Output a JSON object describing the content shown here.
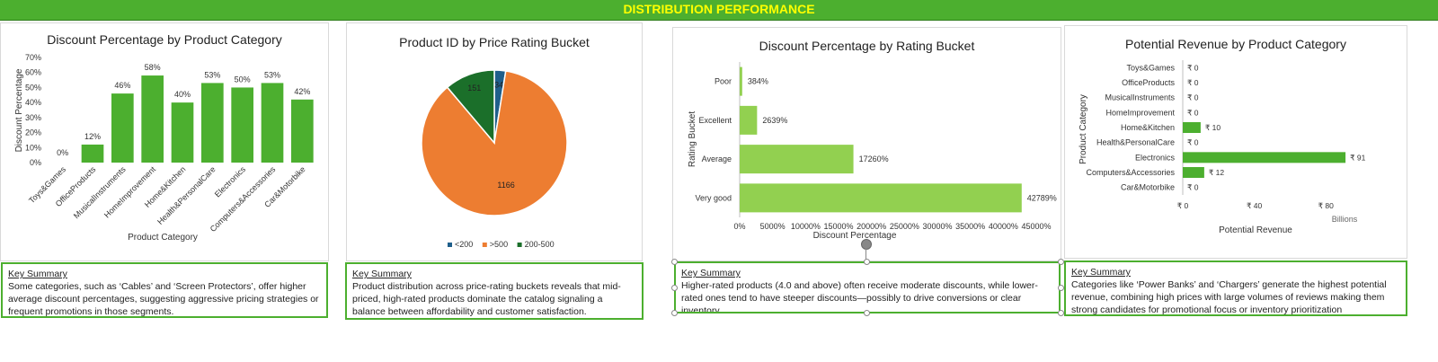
{
  "banner": {
    "title": "DISTRIBUTION PERFORMANCE"
  },
  "colors": {
    "green": "#4caf2f",
    "light_green": "#92d050",
    "orange": "#ed7d31",
    "dark_green": "#1b6f2a",
    "blue": "#1f5f8b",
    "banner_text": "#ffff00"
  },
  "summaries": [
    {
      "heading": "Key Summary",
      "text": "Some categories, such as ‘Cables’ and ‘Screen Protectors’, offer higher average discount percentages, suggesting aggressive pricing strategies or frequent promotions in those segments."
    },
    {
      "heading": "Key Summary",
      "text": "Product distribution across price-rating buckets reveals that mid-priced, high-rated products dominate the catalog signaling a balance between affordability and customer satisfaction."
    },
    {
      "heading": "Key Summary",
      "text": "Higher-rated products (4.0 and above) often receive moderate discounts, while lower-rated ones tend to have steeper discounts—possibly to drive conversions or clear inventory."
    },
    {
      "heading": "Key Summary",
      "text": "Categories like ‘Power Banks’ and ‘Chargers’ generate the highest potential revenue, combining high prices with large volumes of reviews making them strong candidates for promotional focus or inventory prioritization"
    }
  ],
  "chart_data": [
    {
      "type": "bar",
      "title": "Discount Percentage by Product Category",
      "xlabel": "Product Category",
      "ylabel": "Discount Percentage",
      "categories": [
        "Toys&Games",
        "OfficeProducts",
        "MusicalInstruments",
        "HomeImprovement",
        "Home&Kitchen",
        "Health&PersonalCare",
        "Electronics",
        "Computers&Accessories",
        "Car&Motorbike"
      ],
      "values": [
        0,
        12,
        46,
        58,
        40,
        53,
        50,
        53,
        42
      ],
      "data_labels": [
        "0%",
        "12%",
        "46%",
        "58%",
        "40%",
        "53%",
        "50%",
        "53%",
        "42%"
      ],
      "yticks": [
        "0%",
        "10%",
        "20%",
        "30%",
        "40%",
        "50%",
        "60%",
        "70%"
      ],
      "ylim": [
        0,
        70
      ],
      "grid": false
    },
    {
      "type": "pie",
      "title": "Product ID by Price Rating Bucket",
      "labels": [
        "<200",
        ">500",
        "200-500"
      ],
      "values": [
        34,
        1166,
        151
      ],
      "data_labels": [
        "34",
        "1166",
        "151"
      ],
      "legend": "bottom"
    },
    {
      "type": "bar",
      "orientation": "horizontal",
      "title": "Discount Percentage  by Rating Bucket",
      "xlabel": "Discount Percentage",
      "ylabel": "Rating Bucket",
      "categories": [
        "Poor",
        "Excellent",
        "Average",
        "Very good"
      ],
      "values": [
        384,
        2639,
        17260,
        42789
      ],
      "data_labels": [
        "384%",
        "2639%",
        "17260%",
        "42789%"
      ],
      "xticks": [
        "0%",
        "5000%",
        "10000%",
        "15000%",
        "20000%",
        "25000%",
        "30000%",
        "35000%",
        "40000%",
        "45000%"
      ],
      "xlim": [
        0,
        45000
      ],
      "grid": false
    },
    {
      "type": "bar",
      "orientation": "horizontal",
      "title": "Potential Revenue by Product Category",
      "xlabel": "Potential Revenue",
      "ylabel": "Product Category",
      "unit_label": "Billions",
      "categories": [
        "Toys&Games",
        "OfficeProducts",
        "MusicalInstruments",
        "HomeImprovement",
        "Home&Kitchen",
        "Health&PersonalCare",
        "Electronics",
        "Computers&Accessories",
        "Car&Motorbike"
      ],
      "values": [
        0,
        0,
        0,
        0,
        10,
        0,
        91,
        12,
        0
      ],
      "data_labels": [
        "₹ 0",
        "₹ 0",
        "₹ 0",
        "₹ 0",
        "₹ 10",
        "₹ 0",
        "₹ 91",
        "₹ 12",
        "₹ 0"
      ],
      "xticks": [
        "₹ 0",
        "₹ 40",
        "₹ 80"
      ],
      "xlim": [
        0,
        100
      ],
      "grid": false
    }
  ]
}
